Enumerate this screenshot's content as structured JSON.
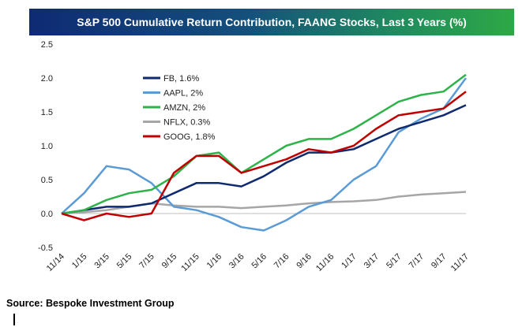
{
  "chart_data": {
    "type": "line",
    "title": "S&P 500 Cumulative Return Contribution, FAANG Stocks, Last 3 Years (%)",
    "source": "Source: Bespoke Investment Group",
    "xlabel": "",
    "ylabel": "",
    "ylim": [
      -0.5,
      2.5
    ],
    "yticks": [
      "-0.5",
      "0.0",
      "0.5",
      "1.0",
      "1.5",
      "2.0",
      "2.5"
    ],
    "xticks": [
      "11/14",
      "1/15",
      "3/15",
      "5/15",
      "7/15",
      "9/15",
      "11/15",
      "1/16",
      "3/16",
      "5/16",
      "7/16",
      "9/16",
      "11/16",
      "1/17",
      "3/17",
      "5/17",
      "7/17",
      "9/17",
      "11/17"
    ],
    "x": [
      "11/14",
      "1/15",
      "3/15",
      "5/15",
      "7/15",
      "9/15",
      "11/15",
      "1/16",
      "3/16",
      "5/16",
      "7/16",
      "9/16",
      "11/16",
      "1/17",
      "3/17",
      "5/17",
      "7/17",
      "9/17",
      "11/17"
    ],
    "grid": false,
    "legend_position": "top-left",
    "series": [
      {
        "name": "FB, 1.6%",
        "color": "#0f2a6e",
        "values": [
          0.0,
          0.05,
          0.1,
          0.1,
          0.15,
          0.3,
          0.45,
          0.45,
          0.4,
          0.55,
          0.75,
          0.9,
          0.9,
          0.95,
          1.1,
          1.25,
          1.35,
          1.45,
          1.6
        ]
      },
      {
        "name": "AAPL, 2%",
        "color": "#5b9bd5",
        "values": [
          0.0,
          0.3,
          0.7,
          0.65,
          0.45,
          0.1,
          0.05,
          -0.05,
          -0.2,
          -0.25,
          -0.1,
          0.1,
          0.2,
          0.5,
          0.7,
          1.2,
          1.4,
          1.55,
          2.0
        ]
      },
      {
        "name": "AMZN, 2%",
        "color": "#2eb34a",
        "values": [
          0.0,
          0.05,
          0.2,
          0.3,
          0.35,
          0.55,
          0.85,
          0.9,
          0.6,
          0.8,
          1.0,
          1.1,
          1.1,
          1.25,
          1.45,
          1.65,
          1.75,
          1.8,
          2.05
        ]
      },
      {
        "name": "NFLX, 0.3%",
        "color": "#a6a6a6",
        "values": [
          0.0,
          0.02,
          0.05,
          0.1,
          0.15,
          0.12,
          0.1,
          0.1,
          0.08,
          0.1,
          0.12,
          0.15,
          0.17,
          0.18,
          0.2,
          0.25,
          0.28,
          0.3,
          0.32
        ]
      },
      {
        "name": "GOOG, 1.8%",
        "color": "#c00000",
        "values": [
          0.0,
          -0.1,
          0.0,
          -0.05,
          0.0,
          0.6,
          0.85,
          0.85,
          0.6,
          0.7,
          0.8,
          0.95,
          0.9,
          1.0,
          1.25,
          1.45,
          1.5,
          1.55,
          1.8
        ]
      }
    ]
  }
}
